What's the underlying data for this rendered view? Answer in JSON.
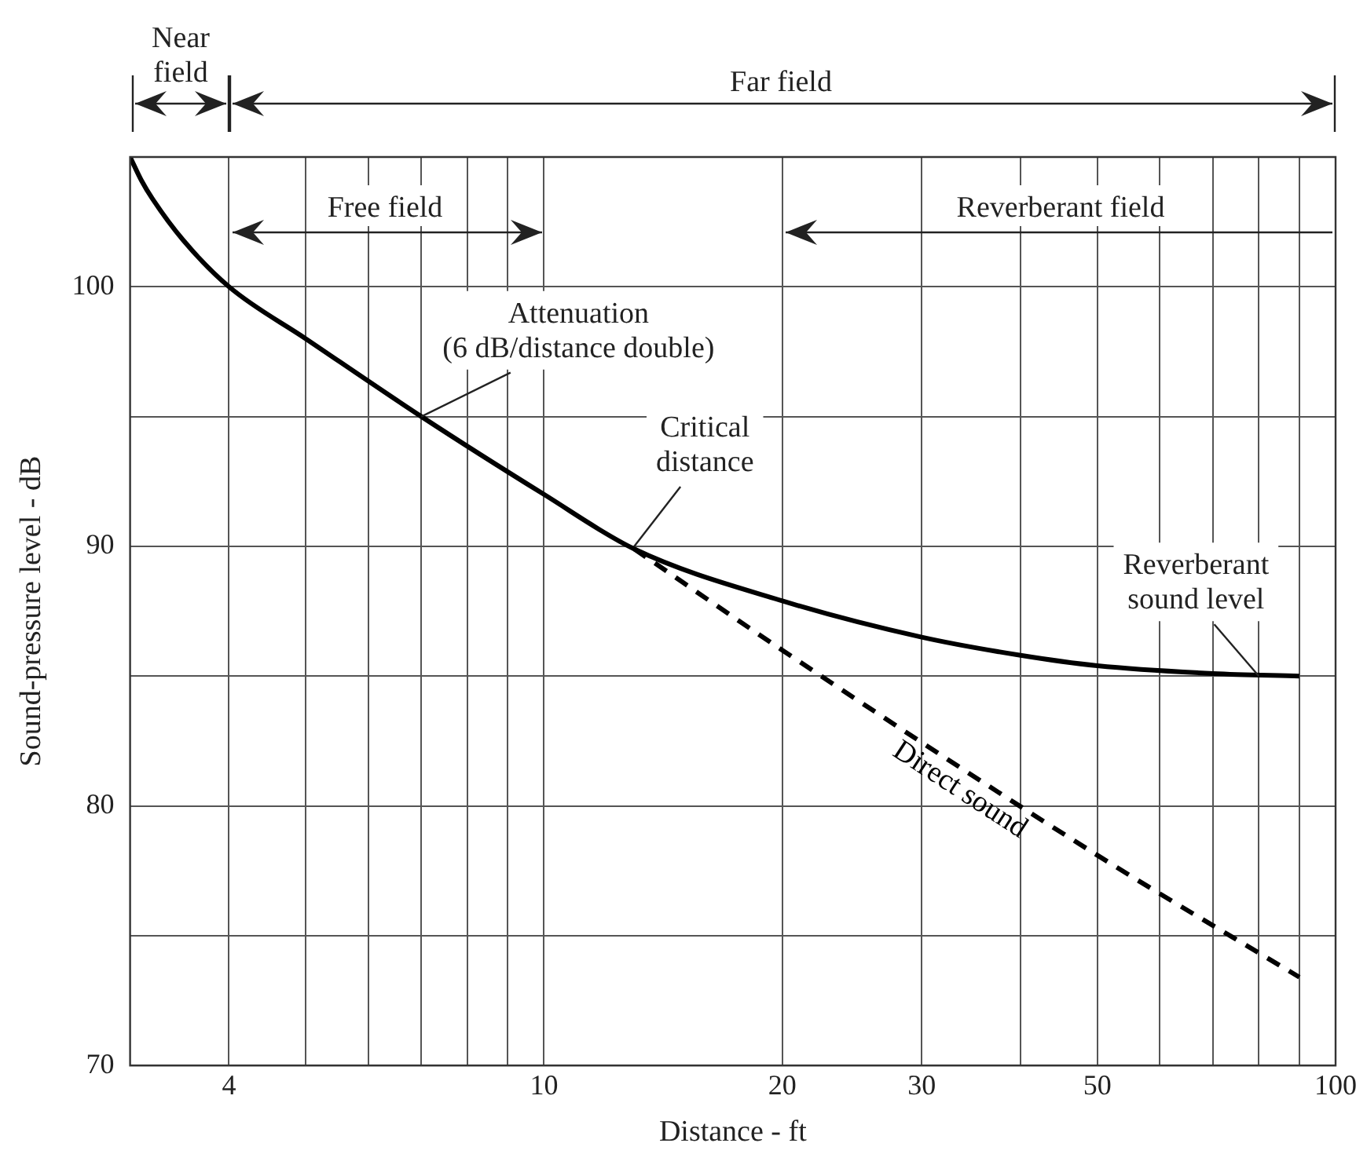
{
  "chart_data": {
    "type": "line",
    "xlabel": "Distance - ft",
    "ylabel": "Sound-pressure level - dB",
    "log": "x",
    "grid": true,
    "legend": false,
    "marker": "none",
    "xlim": [
      3,
      100
    ],
    "ylim": [
      70,
      105
    ],
    "xticks": [
      4,
      {
        "value": 5,
        "label": null
      },
      {
        "value": 6,
        "label": null
      },
      {
        "value": 7,
        "label": null
      },
      {
        "value": 8,
        "label": null
      },
      {
        "value": 9,
        "label": null
      },
      10,
      20,
      30,
      {
        "value": 40,
        "label": null
      },
      50,
      {
        "value": 60,
        "label": null
      },
      {
        "value": 70,
        "label": null
      },
      {
        "value": 80,
        "label": null
      },
      {
        "value": 90,
        "label": null
      },
      100
    ],
    "yticks": [
      70,
      {
        "value": 75,
        "label": null
      },
      80,
      {
        "value": 85,
        "label": null
      },
      90,
      {
        "value": 95,
        "label": null
      },
      100
    ],
    "series": [
      {
        "color": "#000000",
        "line_style": "solid",
        "x": [
          3,
          3.1,
          3.2,
          3.5,
          4,
          5,
          7,
          10,
          13,
          20,
          30,
          40,
          50,
          70,
          90
        ],
        "values": [
          105,
          104.1,
          103.4,
          101.8,
          100,
          98,
          95,
          92,
          89.9,
          87.9,
          86.5,
          85.8,
          85.4,
          85.1,
          85
        ]
      },
      {
        "name": "Direct sound",
        "color": "#000000",
        "line_style": "dashed",
        "x": [
          13,
          20,
          50,
          90
        ],
        "values": [
          89.9,
          86,
          78.1,
          73.4
        ]
      }
    ],
    "annotations": [
      {
        "text": "Attenuation\n(6 dB/distance double)",
        "x": 7,
        "y": 95
      },
      {
        "text": "Critical\ndistance",
        "x": 13,
        "y": 90
      },
      {
        "text": "Reverberant\nsound level",
        "x": 80,
        "y": 85
      },
      "Near\nfield",
      "Far field",
      "Free field",
      "Reverberant field"
    ]
  }
}
